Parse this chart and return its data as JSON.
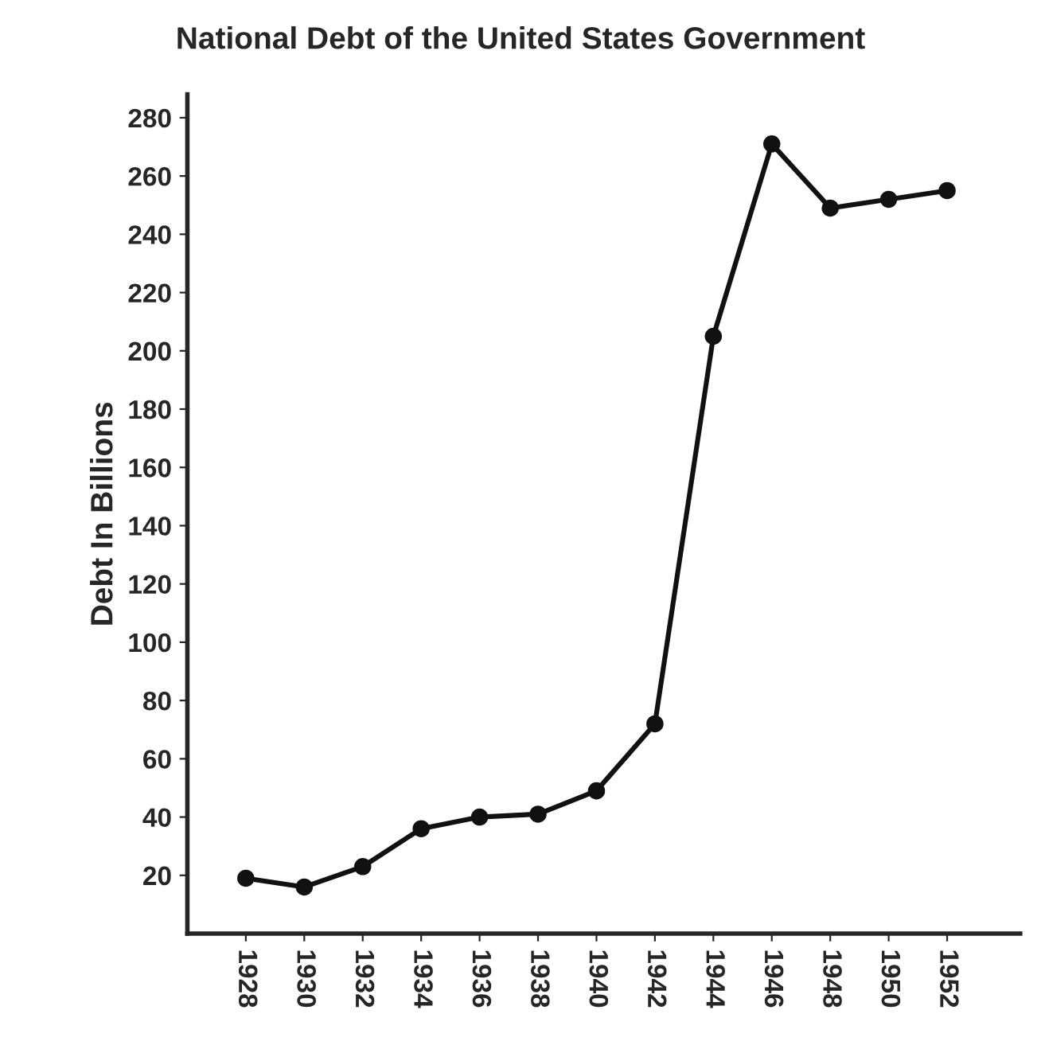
{
  "chart_data": {
    "type": "line",
    "title": "National Debt of the United States Government",
    "ylabel": "Debt In Billions",
    "x": [
      1928,
      1930,
      1932,
      1934,
      1936,
      1938,
      1940,
      1942,
      1944,
      1946,
      1948,
      1950,
      1952
    ],
    "series": [
      {
        "color": "#111111",
        "values": [
          19,
          16,
          23,
          36,
          40,
          41,
          49,
          72,
          205,
          271,
          249,
          252,
          255
        ]
      }
    ],
    "xlim": [
      1926,
      1954.5
    ],
    "ylim": [
      0,
      288
    ],
    "xticks": [
      1928,
      1930,
      1932,
      1934,
      1936,
      1938,
      1940,
      1942,
      1944,
      1946,
      1948,
      1950,
      1952
    ],
    "yticks": [
      20,
      40,
      60,
      80,
      100,
      120,
      140,
      160,
      180,
      200,
      220,
      240,
      260,
      280
    ],
    "marker": "circle",
    "line_style": "solid",
    "grid": false,
    "legend": false
  }
}
